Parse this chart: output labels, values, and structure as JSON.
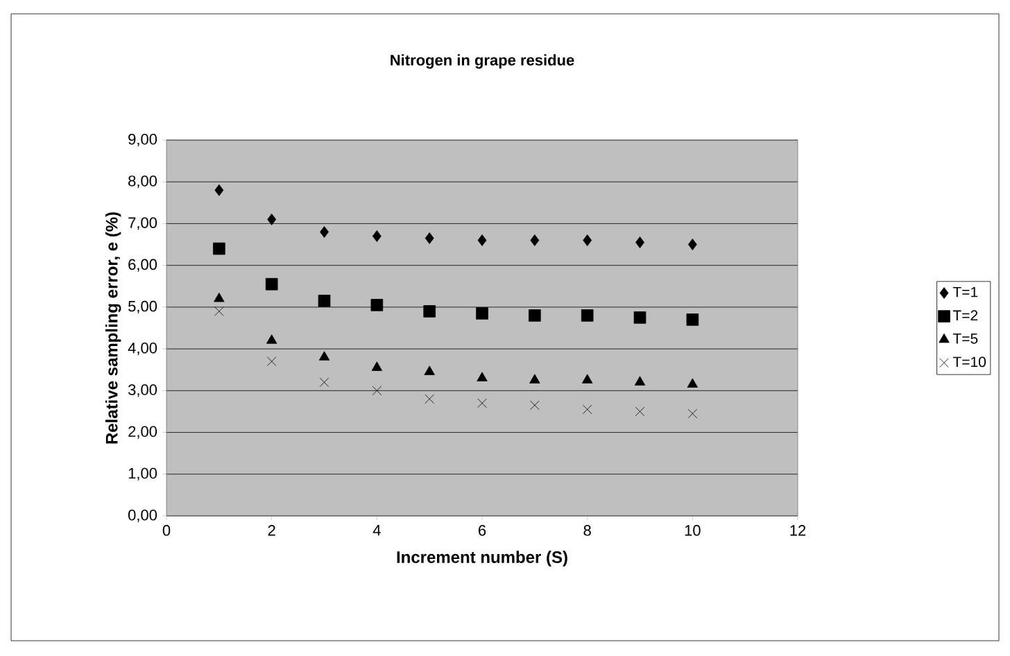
{
  "chart_data": {
    "type": "scatter",
    "title": "Nitrogen in grape residue",
    "xlabel": "Increment number (S)",
    "ylabel": "Relative sampling error, e (%)",
    "x": [
      1,
      2,
      3,
      4,
      5,
      6,
      7,
      8,
      9,
      10
    ],
    "series": [
      {
        "name": "T=1",
        "color": "#000000",
        "marker": "diamond",
        "values": [
          7.8,
          7.1,
          6.8,
          6.7,
          6.65,
          6.6,
          6.6,
          6.6,
          6.55,
          6.5
        ]
      },
      {
        "name": "T=2",
        "color": "#000000",
        "marker": "square",
        "values": [
          6.4,
          5.55,
          5.15,
          5.05,
          4.9,
          4.85,
          4.8,
          4.8,
          4.75,
          4.7
        ]
      },
      {
        "name": "T=5",
        "color": "#000000",
        "marker": "triangle",
        "values": [
          5.2,
          4.2,
          3.8,
          3.55,
          3.45,
          3.3,
          3.25,
          3.25,
          3.2,
          3.15
        ]
      },
      {
        "name": "T=10",
        "color": "#000000",
        "marker": "cross",
        "values": [
          4.9,
          3.7,
          3.2,
          3.0,
          2.8,
          2.7,
          2.65,
          2.55,
          2.5,
          2.45
        ]
      }
    ],
    "xlim": [
      0,
      12
    ],
    "xticks": [
      0,
      2,
      4,
      6,
      8,
      10,
      12
    ],
    "ylim": [
      0,
      9
    ],
    "yticks": [
      {
        "value": 0,
        "label": "0,00"
      },
      {
        "value": 1,
        "label": "1,00"
      },
      {
        "value": 2,
        "label": "2,00"
      },
      {
        "value": 3,
        "label": "3,00"
      },
      {
        "value": 4,
        "label": "4,00"
      },
      {
        "value": 5,
        "label": "5,00"
      },
      {
        "value": 6,
        "label": "6,00"
      },
      {
        "value": 7,
        "label": "7,00"
      },
      {
        "value": 8,
        "label": "8,00"
      },
      {
        "value": 9,
        "label": "9,00"
      }
    ],
    "grid": "y",
    "legend": "right"
  }
}
